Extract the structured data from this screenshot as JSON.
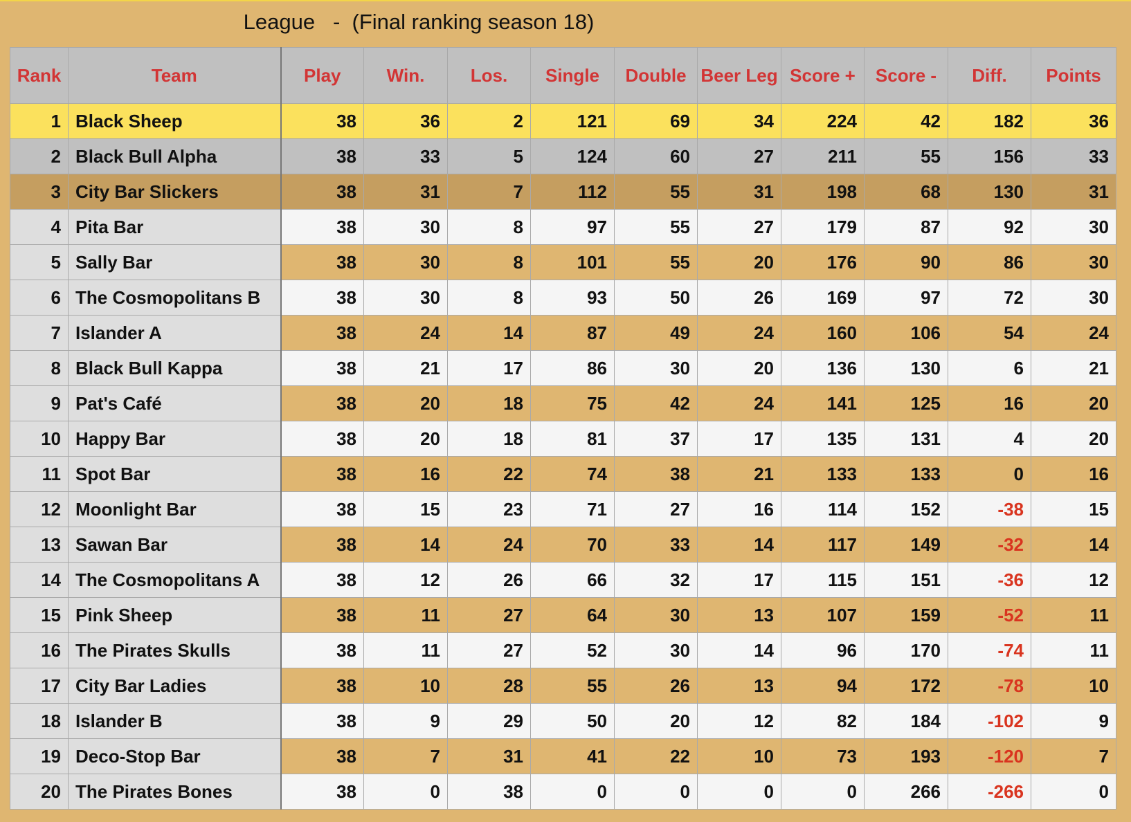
{
  "title": "League   -  (Final ranking season 18)",
  "colors": {
    "header_text": "#d23535",
    "negative": "#d9341f",
    "gold_row": "#fbe15d",
    "silver_row": "#c0c0c0",
    "bronze_row": "#c59e60",
    "tan_row": "#dfb671",
    "light_row": "#f5f5f5"
  },
  "columns": [
    "Rank",
    "Team",
    "Play",
    "Win.",
    "Los.",
    "Single",
    "Double",
    "Beer Leg",
    "Score +",
    "Score -",
    "Diff.",
    "Points"
  ],
  "rows": [
    [
      "1",
      "Black Sheep",
      "38",
      "36",
      "2",
      "121",
      "69",
      "34",
      "224",
      "42",
      "182",
      "36"
    ],
    [
      "2",
      "Black Bull Alpha",
      "38",
      "33",
      "5",
      "124",
      "60",
      "27",
      "211",
      "55",
      "156",
      "33"
    ],
    [
      "3",
      "City Bar Slickers",
      "38",
      "31",
      "7",
      "112",
      "55",
      "31",
      "198",
      "68",
      "130",
      "31"
    ],
    [
      "4",
      "Pita Bar",
      "38",
      "30",
      "8",
      "97",
      "55",
      "27",
      "179",
      "87",
      "92",
      "30"
    ],
    [
      "5",
      "Sally Bar",
      "38",
      "30",
      "8",
      "101",
      "55",
      "20",
      "176",
      "90",
      "86",
      "30"
    ],
    [
      "6",
      "The Cosmopolitans B",
      "38",
      "30",
      "8",
      "93",
      "50",
      "26",
      "169",
      "97",
      "72",
      "30"
    ],
    [
      "7",
      "Islander A",
      "38",
      "24",
      "14",
      "87",
      "49",
      "24",
      "160",
      "106",
      "54",
      "24"
    ],
    [
      "8",
      "Black Bull Kappa",
      "38",
      "21",
      "17",
      "86",
      "30",
      "20",
      "136",
      "130",
      "6",
      "21"
    ],
    [
      "9",
      "Pat's Café",
      "38",
      "20",
      "18",
      "75",
      "42",
      "24",
      "141",
      "125",
      "16",
      "20"
    ],
    [
      "10",
      "Happy Bar",
      "38",
      "20",
      "18",
      "81",
      "37",
      "17",
      "135",
      "131",
      "4",
      "20"
    ],
    [
      "11",
      "Spot Bar",
      "38",
      "16",
      "22",
      "74",
      "38",
      "21",
      "133",
      "133",
      "0",
      "16"
    ],
    [
      "12",
      "Moonlight Bar",
      "38",
      "15",
      "23",
      "71",
      "27",
      "16",
      "114",
      "152",
      "-38",
      "15"
    ],
    [
      "13",
      "Sawan Bar",
      "38",
      "14",
      "24",
      "70",
      "33",
      "14",
      "117",
      "149",
      "-32",
      "14"
    ],
    [
      "14",
      "The Cosmopolitans A",
      "38",
      "12",
      "26",
      "66",
      "32",
      "17",
      "115",
      "151",
      "-36",
      "12"
    ],
    [
      "15",
      "Pink Sheep",
      "38",
      "11",
      "27",
      "64",
      "30",
      "13",
      "107",
      "159",
      "-52",
      "11"
    ],
    [
      "16",
      "The Pirates Skulls",
      "38",
      "11",
      "27",
      "52",
      "30",
      "14",
      "96",
      "170",
      "-74",
      "11"
    ],
    [
      "17",
      "City Bar Ladies",
      "38",
      "10",
      "28",
      "55",
      "26",
      "13",
      "94",
      "172",
      "-78",
      "10"
    ],
    [
      "18",
      "Islander B",
      "38",
      "9",
      "29",
      "50",
      "20",
      "12",
      "82",
      "184",
      "-102",
      "9"
    ],
    [
      "19",
      "Deco-Stop Bar",
      "38",
      "7",
      "31",
      "41",
      "22",
      "10",
      "73",
      "193",
      "-120",
      "7"
    ],
    [
      "20",
      "The Pirates Bones",
      "38",
      "0",
      "38",
      "0",
      "0",
      "0",
      "0",
      "266",
      "-266",
      "0"
    ]
  ]
}
